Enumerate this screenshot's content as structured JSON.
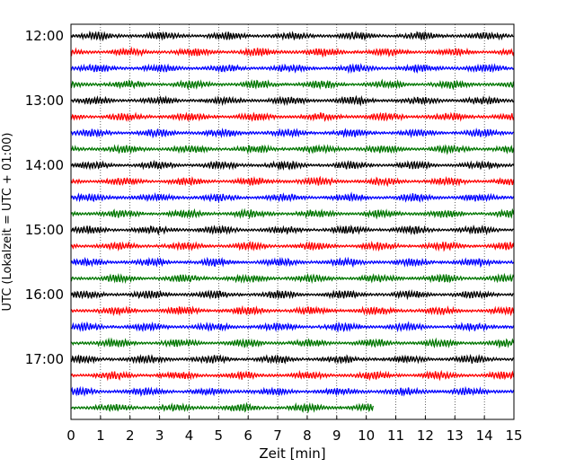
{
  "chart_data": {
    "type": "line",
    "xlabel": "Zeit  [min]",
    "ylabel": "UTC (Lokalzeit = UTC + 01:00)",
    "xlim": [
      0,
      15
    ],
    "x_ticks": [
      "0",
      "1",
      "2",
      "3",
      "4",
      "5",
      "6",
      "7",
      "8",
      "9",
      "10",
      "11",
      "12",
      "13",
      "14",
      "15"
    ],
    "y_tick_labels": [
      "12:00",
      "13:00",
      "14:00",
      "15:00",
      "16:00",
      "17:00"
    ],
    "grid": "vertical dotted at each minute",
    "trace_interval_minutes": 15,
    "colors_cycle": [
      "#000000",
      "#ff0000",
      "#0000ff",
      "#007700"
    ],
    "series": [
      {
        "start": "12:00",
        "color": "#000000",
        "end_min": 15
      },
      {
        "start": "12:15",
        "color": "#ff0000",
        "end_min": 15
      },
      {
        "start": "12:30",
        "color": "#0000ff",
        "end_min": 15
      },
      {
        "start": "12:45",
        "color": "#007700",
        "end_min": 15
      },
      {
        "start": "13:00",
        "color": "#000000",
        "end_min": 15
      },
      {
        "start": "13:15",
        "color": "#ff0000",
        "end_min": 15
      },
      {
        "start": "13:30",
        "color": "#0000ff",
        "end_min": 15
      },
      {
        "start": "13:45",
        "color": "#007700",
        "end_min": 15
      },
      {
        "start": "14:00",
        "color": "#000000",
        "end_min": 15
      },
      {
        "start": "14:15",
        "color": "#ff0000",
        "end_min": 15
      },
      {
        "start": "14:30",
        "color": "#0000ff",
        "end_min": 15
      },
      {
        "start": "14:45",
        "color": "#007700",
        "end_min": 15
      },
      {
        "start": "15:00",
        "color": "#000000",
        "end_min": 15
      },
      {
        "start": "15:15",
        "color": "#ff0000",
        "end_min": 15
      },
      {
        "start": "15:30",
        "color": "#0000ff",
        "end_min": 15
      },
      {
        "start": "15:45",
        "color": "#007700",
        "end_min": 15
      },
      {
        "start": "16:00",
        "color": "#000000",
        "end_min": 15
      },
      {
        "start": "16:15",
        "color": "#ff0000",
        "end_min": 15
      },
      {
        "start": "16:30",
        "color": "#0000ff",
        "end_min": 15
      },
      {
        "start": "16:45",
        "color": "#007700",
        "end_min": 15
      },
      {
        "start": "17:00",
        "color": "#000000",
        "end_min": 15
      },
      {
        "start": "17:15",
        "color": "#ff0000",
        "end_min": 15
      },
      {
        "start": "17:30",
        "color": "#0000ff",
        "end_min": 15
      },
      {
        "start": "17:45",
        "color": "#007700",
        "end_min": 10.25
      }
    ]
  }
}
